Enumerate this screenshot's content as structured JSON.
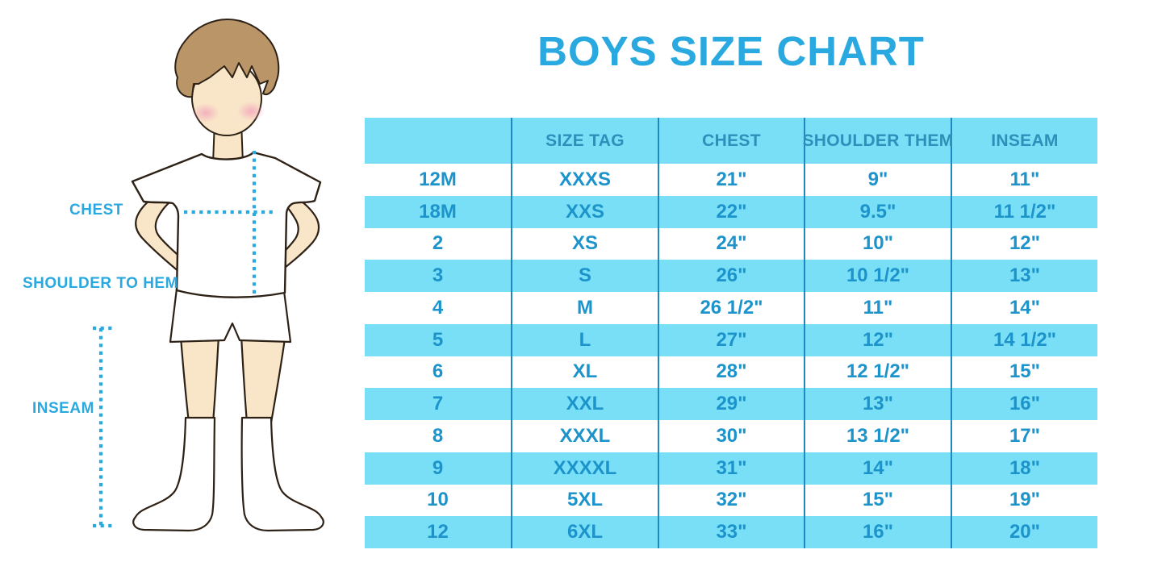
{
  "title": "BOYS SIZE CHART",
  "colors": {
    "accent_blue": "#29A9E0",
    "table_stripe": "#79DFF7",
    "table_grid_line": "#1E88C0",
    "table_text": "#1C94CB",
    "header_text": "#2C90BA",
    "skin": "#F9E6C8",
    "hair": "#B99568",
    "blush": "#F2A9BE"
  },
  "figure": {
    "labels": {
      "chest": "CHEST",
      "shoulder_to_hem": "SHOULDER TO HEM",
      "inseam": "INSEAM"
    }
  },
  "chart_data": {
    "type": "table",
    "title": "BOYS SIZE CHART",
    "columns": [
      "",
      "SIZE TAG",
      "CHEST",
      "SHOULDER THEM",
      "INSEAM"
    ],
    "rows": [
      [
        "12M",
        "XXXS",
        "21\"",
        "9\"",
        "11\""
      ],
      [
        "18M",
        "XXS",
        "22\"",
        "9.5\"",
        "11 1/2\""
      ],
      [
        "2",
        "XS",
        "24\"",
        "10\"",
        "12\""
      ],
      [
        "3",
        "S",
        "26\"",
        "10 1/2\"",
        "13\""
      ],
      [
        "4",
        "M",
        "26 1/2\"",
        "11\"",
        "14\""
      ],
      [
        "5",
        "L",
        "27\"",
        "12\"",
        "14 1/2\""
      ],
      [
        "6",
        "XL",
        "28\"",
        "12 1/2\"",
        "15\""
      ],
      [
        "7",
        "XXL",
        "29\"",
        "13\"",
        "16\""
      ],
      [
        "8",
        "XXXL",
        "30\"",
        "13 1/2\"",
        "17\""
      ],
      [
        "9",
        "XXXXL",
        "31\"",
        "14\"",
        "18\""
      ],
      [
        "10",
        "5XL",
        "32\"",
        "15\"",
        "19\""
      ],
      [
        "12",
        "6XL",
        "33\"",
        "16\"",
        "20\""
      ]
    ],
    "layout": {
      "striped": true,
      "stripe_pattern": "rows alternate white / light-cyan starting with white",
      "header_background": "light-cyan",
      "grid": "vertical column separators only"
    }
  }
}
